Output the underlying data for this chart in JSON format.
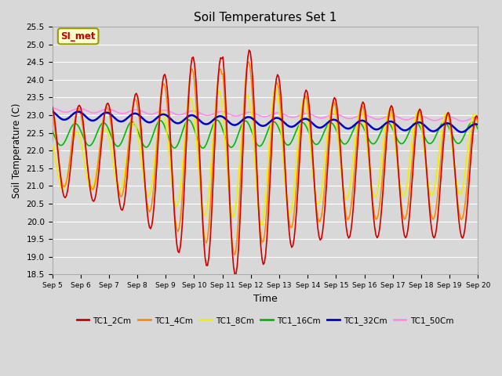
{
  "title": "Soil Temperatures Set 1",
  "xlabel": "Time",
  "ylabel": "Soil Temperature (C)",
  "ylim": [
    18.5,
    25.5
  ],
  "background_color": "#d8d8d8",
  "plot_bg_color": "#d8d8d8",
  "grid_color": "#ffffff",
  "series": {
    "TC1_2Cm": {
      "color": "#cc0000",
      "lw": 1.2
    },
    "TC1_4Cm": {
      "color": "#ff8800",
      "lw": 1.2
    },
    "TC1_8Cm": {
      "color": "#eeee00",
      "lw": 1.2
    },
    "TC1_16Cm": {
      "color": "#00bb00",
      "lw": 1.2
    },
    "TC1_32Cm": {
      "color": "#0000cc",
      "lw": 1.8
    },
    "TC1_50Cm": {
      "color": "#ff88ee",
      "lw": 1.2
    }
  },
  "annotation_text": "SI_met",
  "annotation_color": "#cc0000",
  "annotation_bg": "#ffffcc",
  "annotation_border": "#999900"
}
